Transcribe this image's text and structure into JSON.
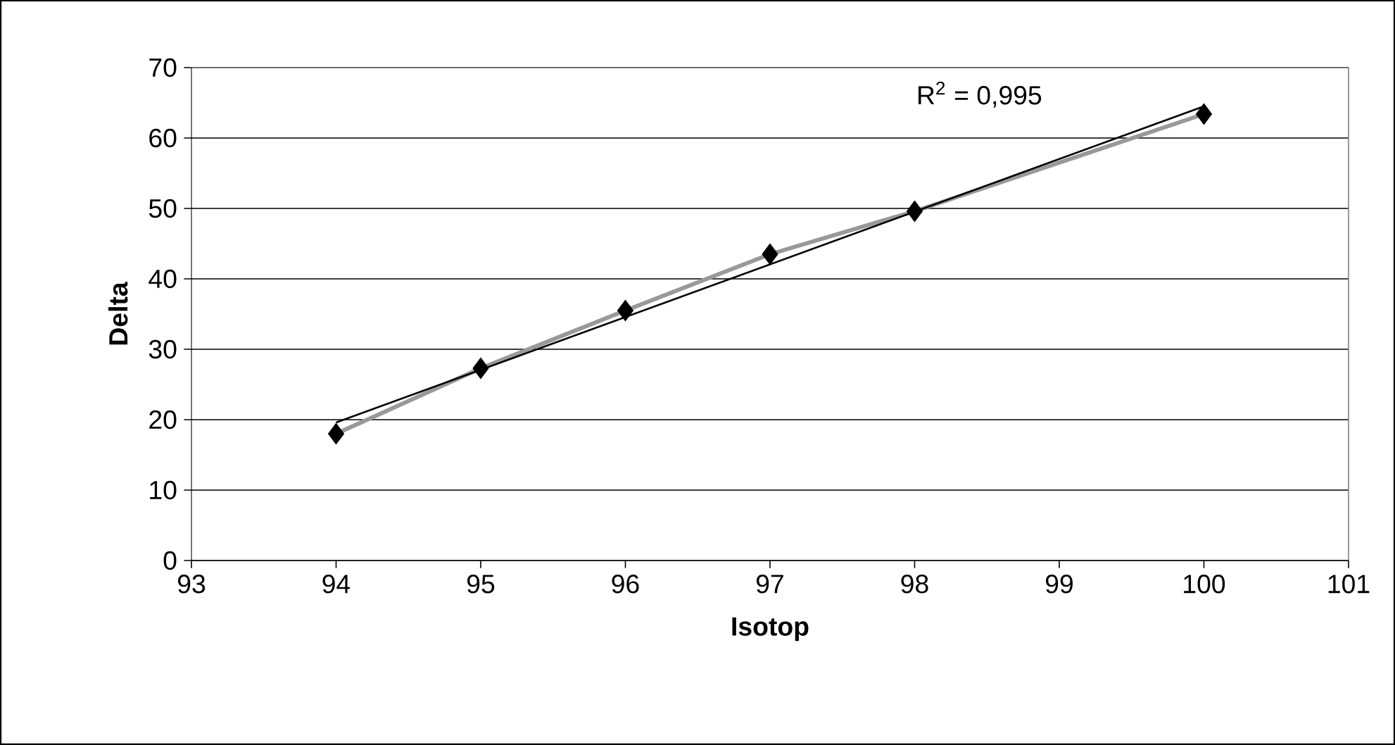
{
  "chart_data": {
    "type": "line",
    "xlabel": "Isotop",
    "ylabel": "Delta",
    "series": [
      {
        "color": "#999999",
        "x": [
          94,
          95,
          96,
          97,
          98,
          100
        ],
        "values": [
          18.0,
          27.3,
          35.5,
          43.5,
          49.6,
          63.4
        ]
      },
      {
        "type": "scatter",
        "color": "#000000",
        "marker": "diamond",
        "x": [
          94,
          95,
          96,
          97,
          98,
          100
        ],
        "values": [
          18.0,
          27.3,
          35.5,
          43.5,
          49.6,
          63.4
        ]
      },
      {
        "color": "#000000",
        "x": [
          94,
          100
        ],
        "values": [
          19.6,
          64.5
        ]
      }
    ],
    "annotations": [
      "R$^{2}$ = 0,995"
    ],
    "xlim": [
      93,
      101
    ],
    "xticks": [
      93,
      94,
      95,
      96,
      97,
      98,
      99,
      100,
      101
    ],
    "ylim": [
      0,
      70
    ],
    "yticks": [
      0,
      10,
      20,
      30,
      40,
      50,
      60,
      70
    ],
    "grid": "y"
  }
}
